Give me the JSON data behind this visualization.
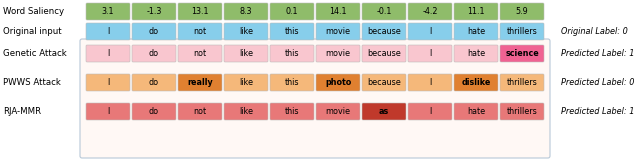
{
  "word_saliency_label": "Word Saliency",
  "saliency_values": [
    "3.1",
    "-1.3",
    "13.1",
    "8.3",
    "0.1",
    "14.1",
    "-0.1",
    "-4.2",
    "11.1",
    "5.9"
  ],
  "saliency_color": "#8fbc6a",
  "original_label": "Original input",
  "original_words": [
    "I",
    "do",
    "not",
    "like",
    "this",
    "movie",
    "because",
    "I",
    "hate",
    "thrillers"
  ],
  "original_color": "#87ceeb",
  "original_right_label": "Original Label: 0",
  "attacks": [
    {
      "name": "Genetic Attack",
      "words": [
        "I",
        "do",
        "not",
        "like",
        "this",
        "movie",
        "because",
        "I",
        "hate",
        "science"
      ],
      "changed": [
        9
      ],
      "right_label": "Predicted Label: 1",
      "base_color": "#f9c6cf",
      "changed_color": "#f06292"
    },
    {
      "name": "PWWS Attack",
      "words": [
        "I",
        "do",
        "really",
        "like",
        "this",
        "photo",
        "because",
        "I",
        "dislike",
        "thrillers"
      ],
      "changed": [
        2,
        5,
        8
      ],
      "right_label": "Predicted Label: 0",
      "base_color": "#f5b87a",
      "changed_color": "#e08030"
    },
    {
      "name": "RJA-MMR",
      "words": [
        "I",
        "do",
        "not",
        "like",
        "this",
        "movie",
        "as",
        "I",
        "hate",
        "thrillers"
      ],
      "changed": [
        6
      ],
      "right_label": "Predicted Label: 1",
      "base_color": "#e87878",
      "changed_color": "#c0392b"
    }
  ],
  "box_bg": "#fff8f5",
  "box_border": "#b8c8d8",
  "fig_bg": "#ffffff",
  "fig_width": 6.4,
  "fig_height": 1.59,
  "dpi": 100
}
